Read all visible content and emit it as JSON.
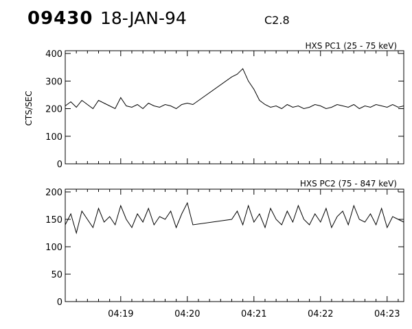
{
  "header": {
    "event_id": "09430",
    "date": "18-JAN-94",
    "flare_class": "C2.8"
  },
  "chart_data": [
    {
      "type": "line",
      "panel": "top",
      "title": "HXS PC1 (25 - 75 keV)",
      "ylabel": "CTS/SEC",
      "ylim": [
        0,
        410
      ],
      "yticks": [
        0,
        100,
        200,
        300,
        400
      ],
      "xlim": [
        "04:18:10",
        "04:23:15"
      ],
      "series": [
        {
          "x": [
            "04:18:10",
            "04:18:15",
            "04:18:20",
            "04:18:25",
            "04:18:30",
            "04:18:35",
            "04:18:40",
            "04:18:45",
            "04:18:50",
            "04:18:55",
            "04:19:00",
            "04:19:05",
            "04:19:10",
            "04:19:15",
            "04:19:20",
            "04:19:25",
            "04:19:30",
            "04:19:35",
            "04:19:40",
            "04:19:45",
            "04:19:50",
            "04:19:55",
            "04:20:00",
            "04:20:05",
            "04:20:40",
            "04:20:45",
            "04:20:50",
            "04:20:55",
            "04:21:00",
            "04:21:05",
            "04:21:10",
            "04:21:15",
            "04:21:20",
            "04:21:25",
            "04:21:30",
            "04:21:35",
            "04:21:40",
            "04:21:45",
            "04:21:50",
            "04:21:55",
            "04:22:00",
            "04:22:05",
            "04:22:10",
            "04:22:15",
            "04:22:20",
            "04:22:25",
            "04:22:30",
            "04:22:35",
            "04:22:40",
            "04:22:45",
            "04:22:50",
            "04:22:55",
            "04:23:00",
            "04:23:05",
            "04:23:10",
            "04:23:15"
          ],
          "y": [
            210,
            225,
            205,
            230,
            215,
            200,
            230,
            220,
            210,
            200,
            240,
            210,
            205,
            215,
            200,
            220,
            210,
            205,
            215,
            210,
            200,
            215,
            220,
            215,
            315,
            325,
            345,
            300,
            270,
            230,
            215,
            205,
            210,
            200,
            215,
            205,
            210,
            200,
            205,
            215,
            210,
            200,
            205,
            215,
            210,
            205,
            215,
            200,
            210,
            205,
            215,
            210,
            205,
            215,
            205,
            210
          ]
        }
      ]
    },
    {
      "type": "line",
      "panel": "bottom",
      "title": "HXS PC2 (75 - 847 keV)",
      "ylabel": "",
      "ylim": [
        0,
        205
      ],
      "yticks": [
        0,
        50,
        100,
        150,
        200
      ],
      "xlim": [
        "04:18:10",
        "04:23:15"
      ],
      "xticks": [
        "04:19",
        "04:20",
        "04:21",
        "04:22",
        "04:23"
      ],
      "series": [
        {
          "x": [
            "04:18:10",
            "04:18:15",
            "04:18:20",
            "04:18:25",
            "04:18:30",
            "04:18:35",
            "04:18:40",
            "04:18:45",
            "04:18:50",
            "04:18:55",
            "04:19:00",
            "04:19:05",
            "04:19:10",
            "04:19:15",
            "04:19:20",
            "04:19:25",
            "04:19:30",
            "04:19:35",
            "04:19:40",
            "04:19:45",
            "04:19:50",
            "04:19:55",
            "04:20:00",
            "04:20:05",
            "04:20:40",
            "04:20:45",
            "04:20:50",
            "04:20:55",
            "04:21:00",
            "04:21:05",
            "04:21:10",
            "04:21:15",
            "04:21:20",
            "04:21:25",
            "04:21:30",
            "04:21:35",
            "04:21:40",
            "04:21:45",
            "04:21:50",
            "04:21:55",
            "04:22:00",
            "04:22:05",
            "04:22:10",
            "04:22:15",
            "04:22:20",
            "04:22:25",
            "04:22:30",
            "04:22:35",
            "04:22:40",
            "04:22:45",
            "04:22:50",
            "04:22:55",
            "04:23:00",
            "04:23:05",
            "04:23:10",
            "04:23:15"
          ],
          "y": [
            140,
            160,
            125,
            165,
            150,
            135,
            170,
            145,
            155,
            140,
            175,
            150,
            135,
            160,
            145,
            170,
            140,
            155,
            150,
            165,
            135,
            160,
            180,
            140,
            150,
            165,
            140,
            175,
            145,
            160,
            135,
            170,
            150,
            140,
            165,
            145,
            175,
            150,
            140,
            160,
            145,
            170,
            135,
            155,
            165,
            140,
            175,
            150,
            145,
            160,
            140,
            170,
            135,
            155,
            150,
            145
          ]
        }
      ]
    }
  ]
}
